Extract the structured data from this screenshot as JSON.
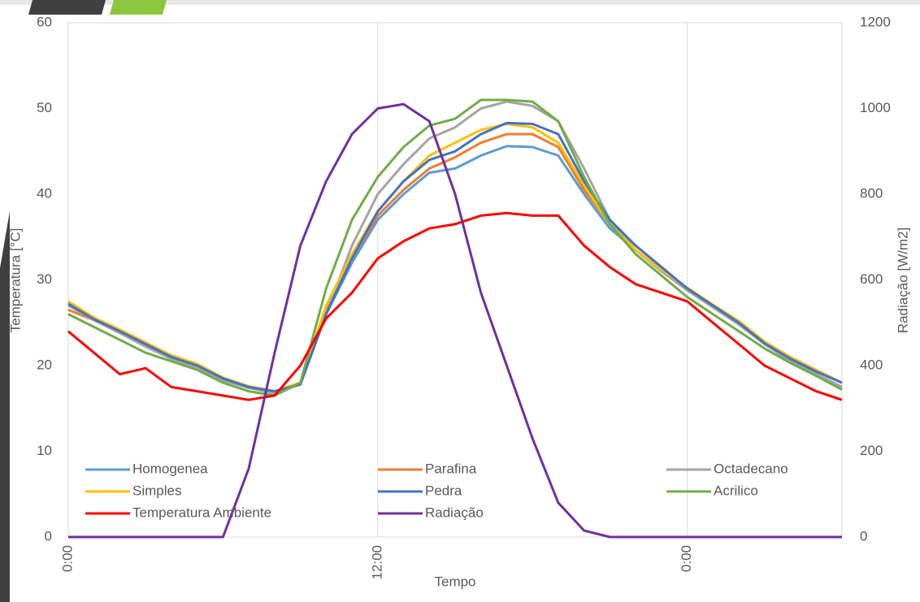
{
  "chart_data": {
    "type": "line",
    "x_label": "Tempo",
    "y_label": "Temperatura [°C]",
    "y2_label": "Radiação [W/m2]",
    "x": [
      0,
      1,
      2,
      3,
      4,
      5,
      6,
      7,
      8,
      9,
      10,
      11,
      12,
      13,
      14,
      15,
      16,
      17,
      18,
      19,
      20,
      21,
      22,
      23,
      24,
      25,
      26,
      27,
      28,
      29,
      30
    ],
    "xlim": [
      0,
      30
    ],
    "xticks": [
      {
        "value": 0,
        "label": "0:00"
      },
      {
        "value": 12,
        "label": "12:00"
      },
      {
        "value": 24,
        "label": "0:00"
      }
    ],
    "ylim": [
      0,
      60
    ],
    "yticks": [
      0,
      10,
      20,
      30,
      40,
      50,
      60
    ],
    "y2lim": [
      0,
      1200
    ],
    "y2ticks": [
      0,
      200,
      400,
      600,
      800,
      1000,
      1200
    ],
    "grid": true,
    "series": [
      {
        "name": "Homogenea",
        "color": "#5b9bd5",
        "values": [
          27.3,
          25.5,
          24,
          22.5,
          21,
          20,
          18.5,
          17.5,
          17,
          18,
          26,
          32,
          37,
          40,
          42.5,
          43,
          44.5,
          45.6,
          45.5,
          44.5,
          40,
          36,
          33.5,
          31,
          29,
          27,
          25,
          22.5,
          21,
          19.5,
          18
        ]
      },
      {
        "name": "Parafina",
        "color": "#ed7d31",
        "values": [
          26.5,
          25.3,
          23.8,
          22.3,
          20.8,
          19.8,
          18.4,
          17.4,
          16.8,
          17.8,
          26.5,
          32.5,
          37.5,
          40.5,
          43,
          44.3,
          46,
          47,
          47,
          45.5,
          40.5,
          36.5,
          33.5,
          31,
          28.8,
          26.8,
          24.8,
          22.5,
          20.7,
          19,
          17.5
        ]
      },
      {
        "name": "Octadecano",
        "color": "#a5a5a5",
        "values": [
          27,
          25.3,
          23.8,
          22.2,
          20.8,
          19.8,
          18.3,
          17.4,
          16.8,
          17.8,
          26,
          34,
          40,
          43.5,
          46.5,
          47.8,
          50,
          50.8,
          50.3,
          48.5,
          43,
          37,
          33.5,
          31,
          28.8,
          26.8,
          24.8,
          22.5,
          20.5,
          19,
          17.5
        ]
      },
      {
        "name": "Simples",
        "color": "#ffc000",
        "values": [
          27.5,
          25.6,
          24.2,
          22.7,
          21.2,
          20.2,
          18.6,
          17.6,
          17,
          18,
          27,
          33,
          38,
          41.5,
          44.5,
          46,
          47.5,
          48.2,
          47.8,
          46,
          41,
          36.5,
          33.5,
          31.2,
          29.1,
          27.1,
          25.2,
          22.8,
          21,
          19.5,
          18
        ]
      },
      {
        "name": "Pedra",
        "color": "#4472c4",
        "values": [
          27.2,
          25.4,
          24,
          22.5,
          21,
          20,
          18.5,
          17.5,
          17,
          17.8,
          26,
          32.5,
          38,
          41.5,
          44,
          45,
          47,
          48.3,
          48.2,
          47,
          41.5,
          37,
          34,
          31.5,
          29,
          27,
          25,
          22.6,
          20.8,
          19.3,
          18
        ]
      },
      {
        "name": "Acrilico",
        "color": "#70ad47",
        "values": [
          26,
          24.5,
          23,
          21.5,
          20.5,
          19.5,
          18,
          17,
          16.5,
          18,
          29,
          37,
          42,
          45.5,
          48,
          48.8,
          51,
          51,
          50.8,
          48.5,
          42,
          36.5,
          33,
          30.5,
          28,
          26,
          24,
          22,
          20.3,
          18.8,
          17.2
        ]
      },
      {
        "name": "Temperatura Ambiente",
        "color": "#ff0000",
        "values": [
          24,
          21.5,
          19,
          19.7,
          17.5,
          17,
          16.5,
          16,
          16.5,
          20,
          25.5,
          28.5,
          32.5,
          34.5,
          36,
          36.5,
          37.5,
          37.8,
          37.5,
          37.5,
          34,
          31.5,
          29.5,
          28.5,
          27.5,
          25,
          22.5,
          20,
          18.5,
          17,
          16
        ]
      },
      {
        "name": "Radiação",
        "color": "#7030a0",
        "axis": "y2",
        "values": [
          0,
          0,
          0,
          0,
          0,
          0,
          0,
          160,
          430,
          680,
          830,
          940,
          1000,
          1010,
          970,
          800,
          570,
          400,
          230,
          80,
          15,
          0,
          0,
          0,
          0,
          0,
          0,
          0,
          0,
          0,
          0
        ]
      }
    ]
  }
}
